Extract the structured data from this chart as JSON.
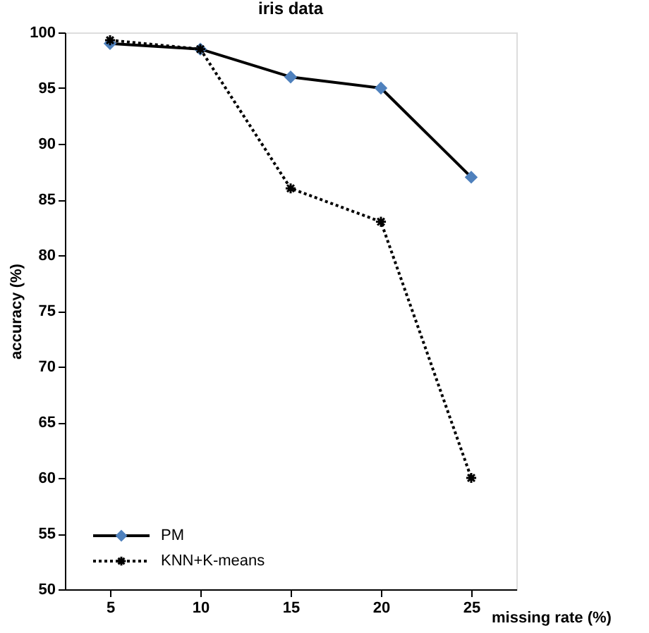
{
  "chart_data": {
    "type": "line",
    "title": "iris data",
    "xlabel": "missing rate (%)",
    "ylabel": "accuracy (%)",
    "categories": [
      "5",
      "10",
      "15",
      "20",
      "25"
    ],
    "series": [
      {
        "name": "PM",
        "color": "#000000",
        "colors": [
          "#4f81bd",
          "#4f81bd",
          "#4f81bd",
          "#4f81bd",
          "#4f81bd"
        ],
        "marker": "diamond",
        "line_style": "solid",
        "values": [
          99,
          98.5,
          96,
          95,
          87
        ]
      },
      {
        "name": "KNN+K-means",
        "color": "#000000",
        "marker": "cross",
        "line_style": "dotted",
        "values": [
          99.3,
          98.5,
          86,
          83,
          60
        ]
      }
    ],
    "ylim": [
      50,
      100
    ],
    "yticks": [
      50,
      55,
      60,
      65,
      70,
      75,
      80,
      85,
      90,
      95,
      100
    ],
    "grid": false,
    "legend": "bottom left"
  }
}
